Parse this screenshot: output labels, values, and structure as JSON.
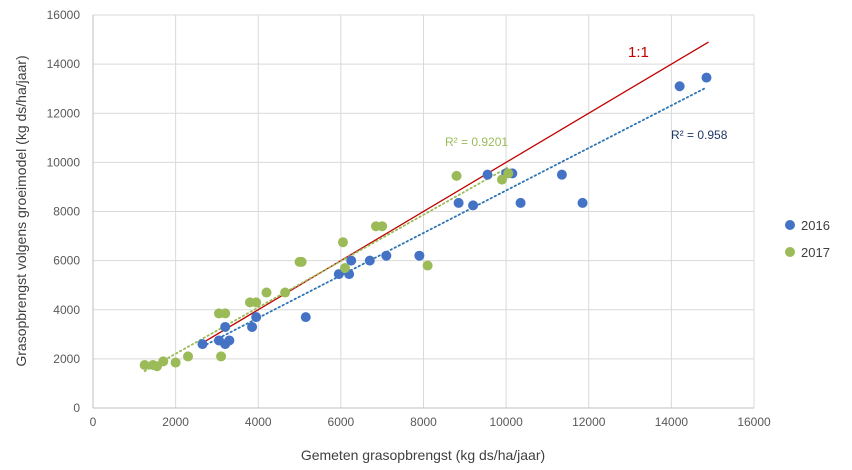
{
  "chart_data": {
    "type": "scatter",
    "xlabel": "Gemeten grasopbrengst (kg ds/ha/jaar)",
    "ylabel": "Grasopbrengst volgens groeimodel (kg ds/ha/jaar)",
    "xlim": [
      0,
      16000
    ],
    "ylim": [
      0,
      16000
    ],
    "x_ticks": [
      "0",
      "2000",
      "4000",
      "6000",
      "8000",
      "10000",
      "12000",
      "14000",
      "16000"
    ],
    "y_ticks": [
      "0",
      "2000",
      "4000",
      "6000",
      "8000",
      "10000",
      "12000",
      "14000",
      "16000"
    ],
    "grid": "vertical and horizontal gridlines",
    "legend_position": "right",
    "series": [
      {
        "name": "2016",
        "color": "#4472C4",
        "points": [
          [
            2650,
            2600
          ],
          [
            3050,
            2750
          ],
          [
            3200,
            2600
          ],
          [
            3200,
            3300
          ],
          [
            3300,
            2750
          ],
          [
            3850,
            3300
          ],
          [
            3950,
            3700
          ],
          [
            5150,
            3700
          ],
          [
            5950,
            5450
          ],
          [
            6200,
            5450
          ],
          [
            6250,
            6000
          ],
          [
            6700,
            6000
          ],
          [
            7100,
            6200
          ],
          [
            7900,
            6200
          ],
          [
            8850,
            8350
          ],
          [
            9200,
            8250
          ],
          [
            9550,
            9500
          ],
          [
            10000,
            9550
          ],
          [
            10150,
            9550
          ],
          [
            10350,
            8350
          ],
          [
            11350,
            9500
          ],
          [
            11850,
            8350
          ],
          [
            14200,
            13100
          ],
          [
            14850,
            13450
          ]
        ],
        "trendline": {
          "type": "linear",
          "x_range": [
            2650,
            14850
          ],
          "y_range": [
            2500,
            13050
          ],
          "color": "#2E75B6",
          "r2_label": "R² = 0.958",
          "r2_color": "#1F3864"
        }
      },
      {
        "name": "2017",
        "color": "#9BBB59",
        "points": [
          [
            1250,
            1750
          ],
          [
            1450,
            1750
          ],
          [
            1550,
            1700
          ],
          [
            1700,
            1900
          ],
          [
            2000,
            1850
          ],
          [
            2300,
            2100
          ],
          [
            3050,
            3850
          ],
          [
            3100,
            2100
          ],
          [
            3200,
            3850
          ],
          [
            3800,
            4300
          ],
          [
            3950,
            4300
          ],
          [
            4200,
            4700
          ],
          [
            4650,
            4700
          ],
          [
            5000,
            5950
          ],
          [
            5050,
            5950
          ],
          [
            6050,
            6750
          ],
          [
            6100,
            5700
          ],
          [
            6850,
            7400
          ],
          [
            7000,
            7400
          ],
          [
            8100,
            5800
          ],
          [
            8800,
            9450
          ],
          [
            9900,
            9300
          ],
          [
            10050,
            9550
          ]
        ],
        "trendline": {
          "type": "linear",
          "x_range": [
            1250,
            10050
          ],
          "y_range": [
            1500,
            9800
          ],
          "color": "#9BBB59",
          "r2_label": "R² = 0.9201",
          "r2_color": "#9BBB59"
        }
      }
    ],
    "reference_line": {
      "label": "1:1",
      "x_range": [
        2700,
        14900
      ],
      "y_range": [
        2700,
        14900
      ],
      "color": "#C00000"
    }
  }
}
